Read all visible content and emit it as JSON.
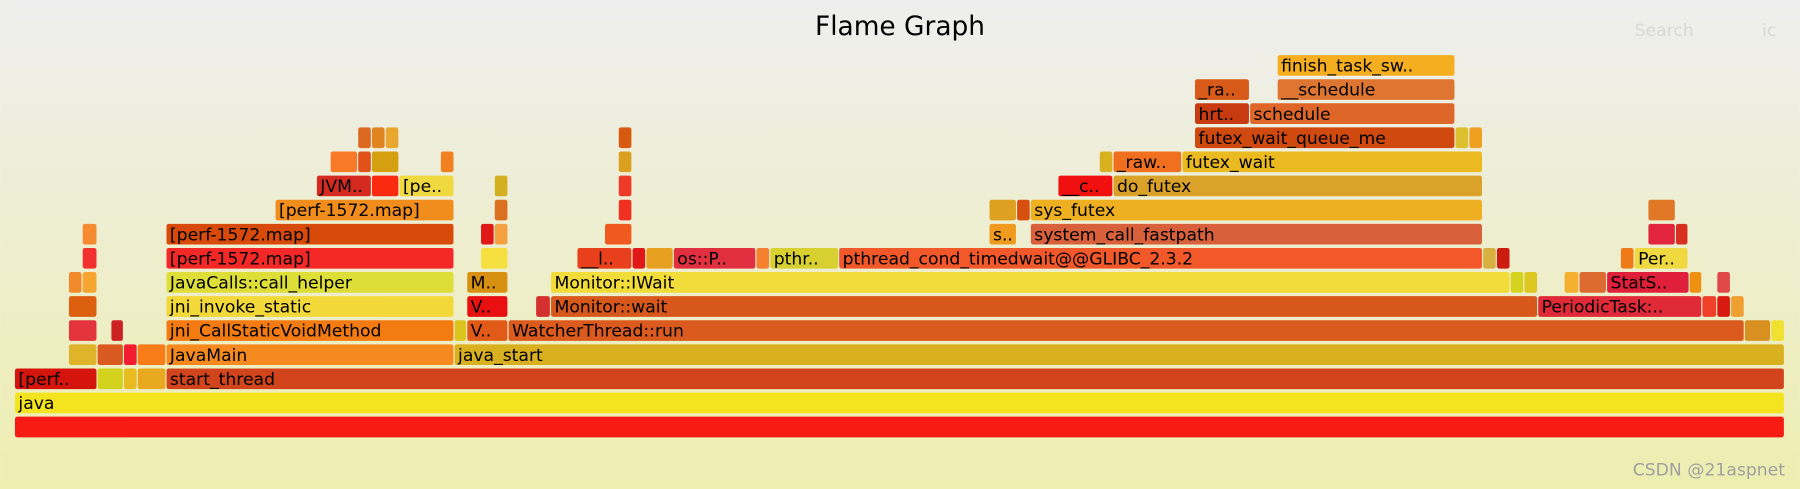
{
  "header": {
    "title": "Flame Graph",
    "search": "Search",
    "ic": "ic"
  },
  "frames": [
    {
      "label": "java"
    },
    {
      "label": "[perf.."
    },
    {
      "label": "start_thread"
    },
    {
      "label": "JavaMain"
    },
    {
      "label": "java_start"
    },
    {
      "label": "jni_CallStaticVoidMethod"
    },
    {
      "label": "V.."
    },
    {
      "label": "WatcherThread::run"
    },
    {
      "label": "jni_invoke_static"
    },
    {
      "label": "V.."
    },
    {
      "label": "Monitor::wait"
    },
    {
      "label": "PeriodicTask:.."
    },
    {
      "label": "JavaCalls::call_helper"
    },
    {
      "label": "M.."
    },
    {
      "label": "Monitor::IWait"
    },
    {
      "label": "StatS.."
    },
    {
      "label": "[perf-1572.map]"
    },
    {
      "label": "__l.."
    },
    {
      "label": "os::P.."
    },
    {
      "label": "pthr.."
    },
    {
      "label": "pthread_cond_timedwait@@GLIBC_2.3.2"
    },
    {
      "label": "Per.."
    },
    {
      "label": "[perf-1572.map]"
    },
    {
      "label": "s.."
    },
    {
      "label": "system_call_fastpath"
    },
    {
      "label": "[perf-1572.map]"
    },
    {
      "label": "sys_futex"
    },
    {
      "label": "JVM.."
    },
    {
      "label": "[pe.."
    },
    {
      "label": "__c.."
    },
    {
      "label": "do_futex"
    },
    {
      "label": "_raw.."
    },
    {
      "label": "futex_wait"
    },
    {
      "label": "futex_wait_queue_me"
    },
    {
      "label": "hrt.."
    },
    {
      "label": "schedule"
    },
    {
      "label": "_ra.."
    },
    {
      "label": "__schedule"
    },
    {
      "label": "finish_task_sw.."
    }
  ],
  "watermark": "CSDN @21aspnet"
}
